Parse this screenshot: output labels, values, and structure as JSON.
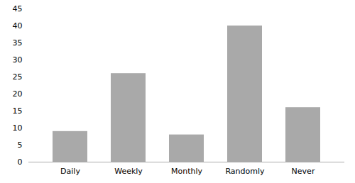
{
  "chart_data": {
    "type": "bar",
    "categories": [
      "Daily",
      "Weekly",
      "Monthly",
      "Randomly",
      "Never"
    ],
    "values": [
      9,
      26,
      8,
      40,
      16
    ],
    "color": "#a9a9a9",
    "ylim": [
      0,
      45
    ],
    "yticks": [
      0,
      5,
      10,
      15,
      20,
      25,
      30,
      35,
      40,
      45
    ],
    "grid": false
  }
}
